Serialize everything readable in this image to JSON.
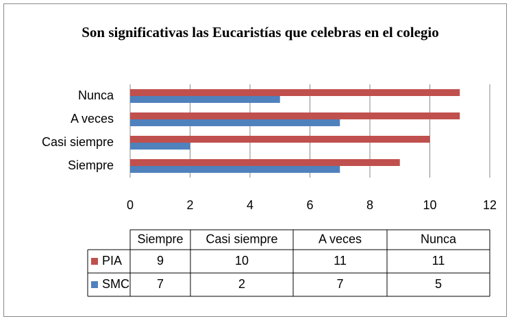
{
  "chart_data": {
    "type": "barh",
    "title": "Son significativas las Eucaristías que celebras en el colegio",
    "categories": [
      "Siempre",
      "Casi siempre",
      "A veces",
      "Nunca"
    ],
    "series": [
      {
        "name": "PIA",
        "color": "#c0504d",
        "values": [
          9,
          10,
          11,
          11
        ]
      },
      {
        "name": "SMC",
        "color": "#4f81bd",
        "values": [
          7,
          2,
          7,
          5
        ]
      }
    ],
    "xlim": [
      0,
      12
    ],
    "xticks": [
      0,
      2,
      4,
      6,
      8,
      10,
      12
    ],
    "grid": true,
    "data_table": true
  }
}
